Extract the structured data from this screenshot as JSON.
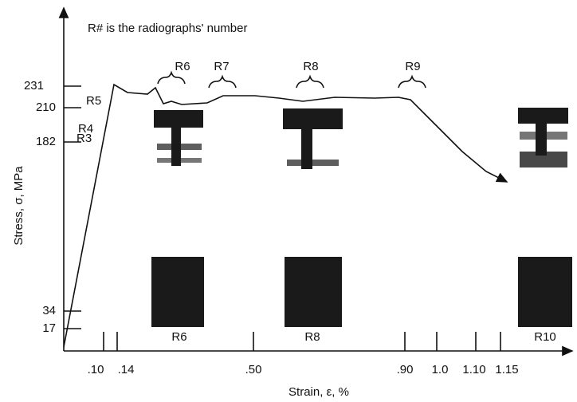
{
  "note_text": "R# is the radiographs' number",
  "y_axis": {
    "label": "Stress, σ, MPa",
    "tick_labels": [
      "231",
      "210",
      "182",
      "34",
      "17"
    ]
  },
  "x_axis": {
    "label": "Strain, ε, %",
    "tick_labels": [
      ".10",
      ".14",
      ".50",
      ".90",
      "1.0",
      "1.10",
      "1.15"
    ]
  },
  "curve_labels": [
    "R3",
    "R4",
    "R5",
    "R6",
    "R7",
    "R8",
    "R9"
  ],
  "image_labels": [
    "R6",
    "R8",
    "R10"
  ]
}
